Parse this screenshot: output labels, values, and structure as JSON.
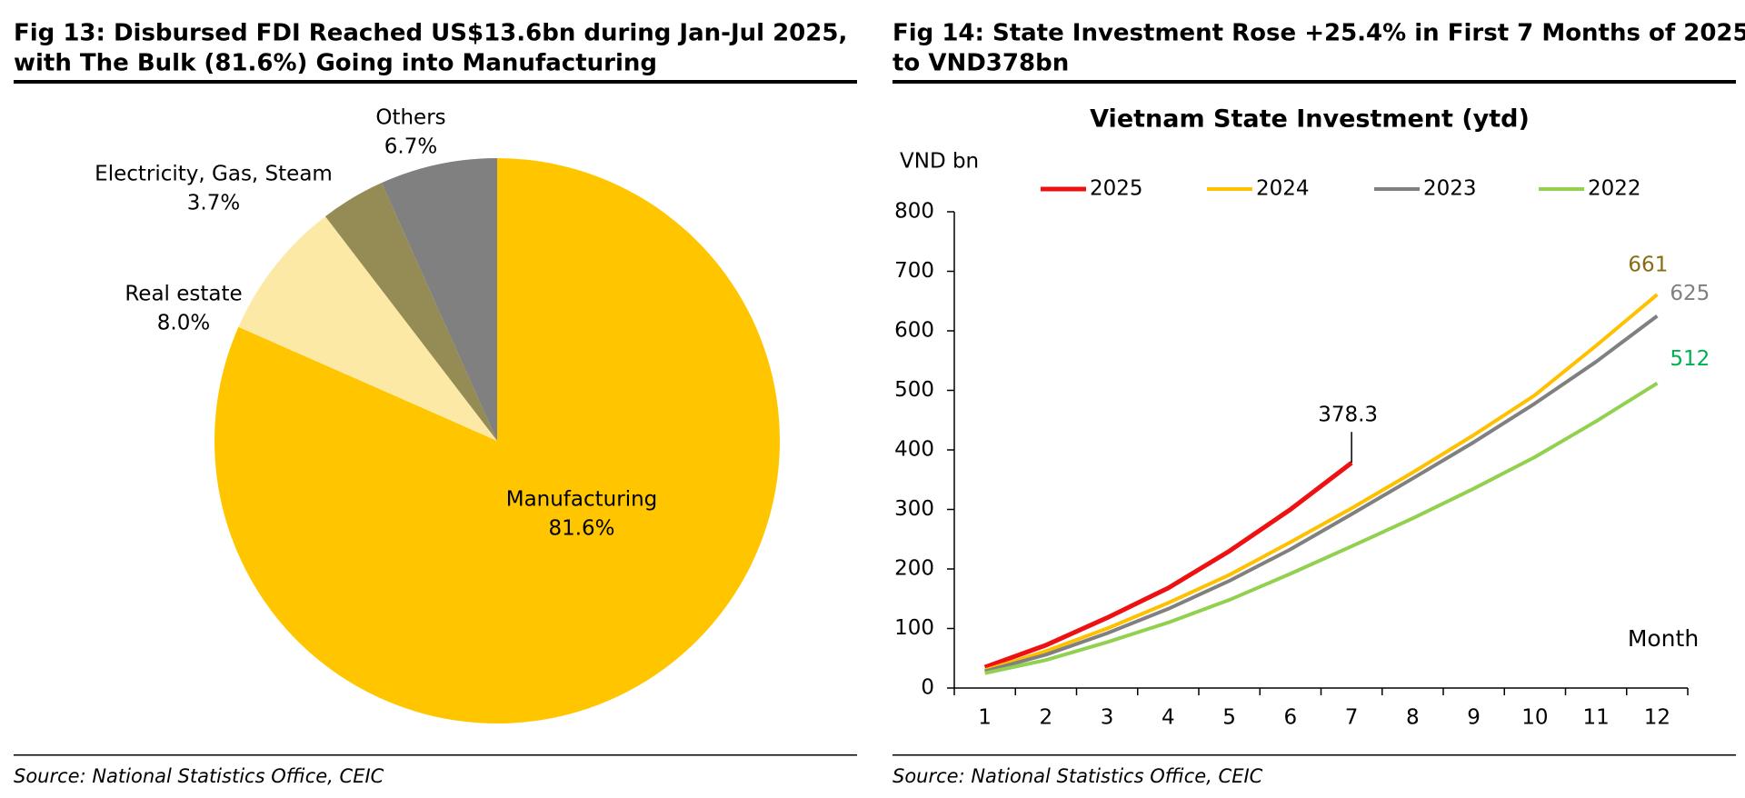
{
  "figures": [
    {
      "heading": [
        "Fig 13: Disbursed FDI Reached US$13.6bn during Jan-Jul 2025,",
        "with The Bulk (81.6%) Going into Manufacturing"
      ],
      "source": "Source: National Statistics Office, CEIC"
    },
    {
      "heading": [
        "Fig 14: State Investment Rose +25.4% in First 7 Months of 2025",
        "to VND378bn"
      ],
      "source": "Source: National Statistics Office, CEIC"
    }
  ],
  "chart_data": [
    {
      "type": "pie",
      "categories": [
        "Manufacturing",
        "Real estate",
        "Electricity, Gas, Steam",
        "Others"
      ],
      "values": [
        81.6,
        8.0,
        3.7,
        6.7
      ],
      "value_labels": [
        "81.6%",
        "8.0%",
        "3.7%",
        "6.7%"
      ],
      "colors": [
        "#FFC600",
        "#FDE9A6",
        "#958B55",
        "#808080"
      ]
    },
    {
      "type": "line",
      "title": "Vietnam State Investment (ytd)",
      "y_label": "VND bn",
      "x_label": "Month",
      "x": [
        1,
        2,
        3,
        4,
        5,
        6,
        7,
        8,
        9,
        10,
        11,
        12
      ],
      "xlim": [
        0.5,
        12.5
      ],
      "xticks": [
        1,
        2,
        3,
        4,
        5,
        6,
        7,
        8,
        9,
        10,
        11,
        12
      ],
      "ylim": [
        0,
        800
      ],
      "yticks": [
        0,
        100,
        200,
        300,
        400,
        500,
        600,
        700,
        800
      ],
      "series": [
        {
          "name": "2025",
          "color": "#EE1111",
          "label_color": "#000000",
          "values": [
            35,
            72,
            118,
            168,
            230,
            300,
            378.3,
            null,
            null,
            null,
            null,
            null
          ]
        },
        {
          "name": "2024",
          "color": "#FFC000",
          "label_color": "#8B6A14",
          "values": [
            30,
            62,
            100,
            143,
            190,
            245,
            302,
            362,
            425,
            492,
            575,
            661
          ]
        },
        {
          "name": "2023",
          "color": "#808080",
          "label_color": "#808080",
          "values": [
            28,
            56,
            92,
            133,
            180,
            233,
            292,
            352,
            413,
            478,
            548,
            625
          ]
        },
        {
          "name": "2022",
          "color": "#92D050",
          "label_color": "#00B050",
          "values": [
            25,
            47,
            77,
            110,
            148,
            192,
            238,
            285,
            335,
            388,
            448,
            512
          ]
        }
      ]
    }
  ]
}
